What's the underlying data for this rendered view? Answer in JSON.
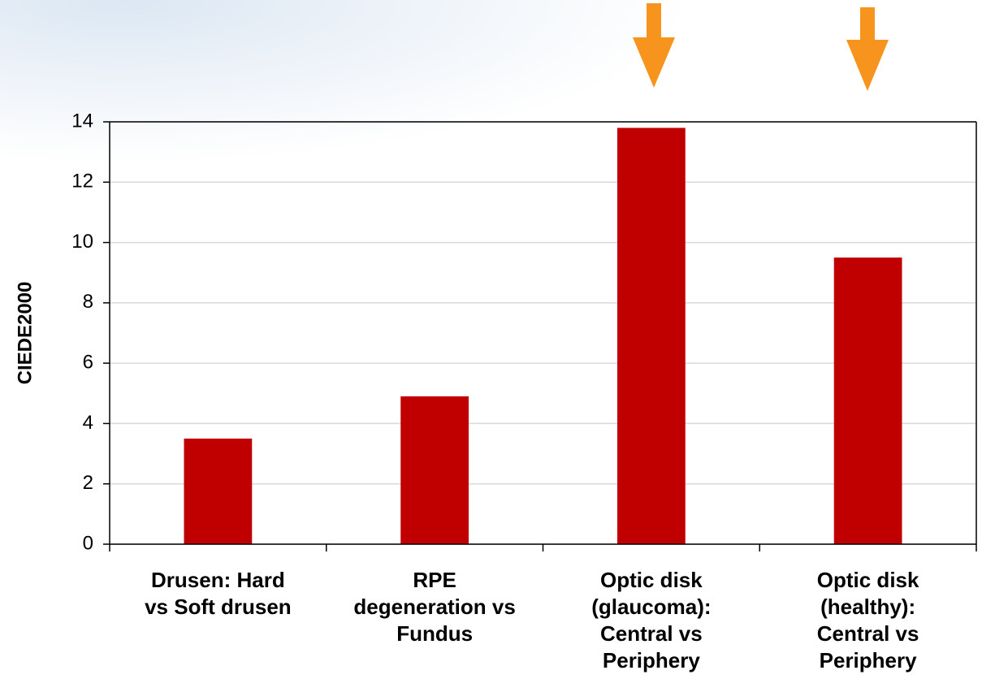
{
  "chart_data": {
    "type": "bar",
    "y_label": "CIEDE2000",
    "categories": [
      "Drusen: Hard\nvs Soft drusen",
      "RPE\ndegeneration vs\nFundus",
      "Optic disk\n(glaucoma):\nCentral vs\nPeriphery",
      "Optic disk\n(healthy):\nCentral vs\nPeriphery"
    ],
    "values": [
      3.5,
      4.9,
      13.8,
      9.5
    ],
    "color": "#c00000",
    "ylim": [
      0,
      14
    ],
    "yticks": [
      0,
      2,
      4,
      6,
      8,
      10,
      12,
      14
    ],
    "grid": true
  }
}
